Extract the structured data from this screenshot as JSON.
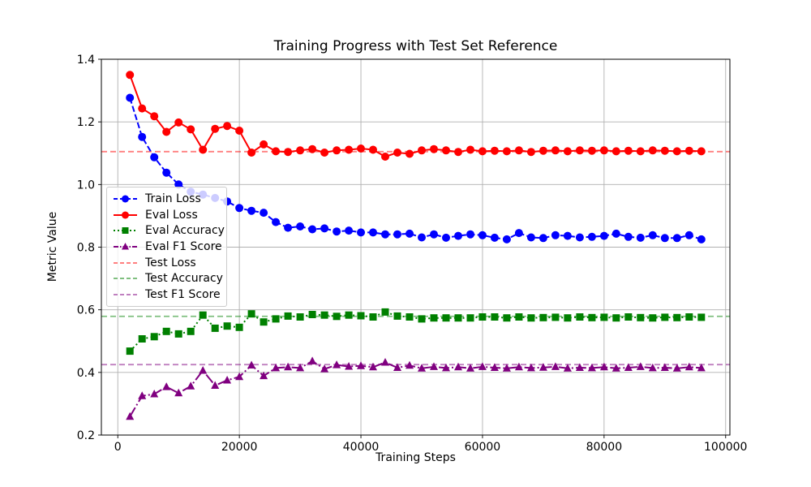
{
  "chart_data": {
    "type": "line",
    "title": "Training Progress with Test Set Reference",
    "xlabel": "Training Steps",
    "ylabel": "Metric Value",
    "xlim": [
      -2700,
      100700
    ],
    "ylim": [
      0.2,
      1.4
    ],
    "x_ticks": [
      0,
      20000,
      40000,
      60000,
      80000,
      100000
    ],
    "x_tick_labels": [
      "0",
      "20000",
      "40000",
      "60000",
      "80000",
      "100000"
    ],
    "y_ticks": [
      0.2,
      0.4,
      0.6,
      0.8,
      1.0,
      1.2,
      1.4
    ],
    "y_tick_labels": [
      "0.2",
      "0.4",
      "0.6",
      "0.8",
      "1.0",
      "1.2",
      "1.4"
    ],
    "grid": true,
    "grid_color": "#b0b0b0",
    "legend_position": "center-left",
    "x": [
      2000,
      4000,
      6000,
      8000,
      10000,
      12000,
      14000,
      16000,
      18000,
      20000,
      22000,
      24000,
      26000,
      28000,
      30000,
      32000,
      34000,
      36000,
      38000,
      40000,
      42000,
      44000,
      46000,
      48000,
      50000,
      52000,
      54000,
      56000,
      58000,
      60000,
      62000,
      64000,
      66000,
      68000,
      70000,
      72000,
      74000,
      76000,
      78000,
      80000,
      82000,
      84000,
      86000,
      88000,
      90000,
      92000,
      94000,
      96000
    ],
    "series": [
      {
        "name": "Train Loss",
        "color": "#0000ff",
        "linestyle": "dashed",
        "marker": "circle",
        "values": [
          1.277,
          1.152,
          1.087,
          1.038,
          1.0,
          0.977,
          0.968,
          0.957,
          0.946,
          0.925,
          0.916,
          0.91,
          0.88,
          0.862,
          0.866,
          0.857,
          0.86,
          0.85,
          0.853,
          0.847,
          0.847,
          0.841,
          0.841,
          0.843,
          0.831,
          0.841,
          0.83,
          0.836,
          0.841,
          0.838,
          0.83,
          0.825,
          0.845,
          0.831,
          0.829,
          0.838,
          0.836,
          0.831,
          0.833,
          0.836,
          0.843,
          0.833,
          0.83,
          0.838,
          0.829,
          0.829,
          0.838,
          0.825
        ]
      },
      {
        "name": "Eval Loss",
        "color": "#ff0000",
        "linestyle": "solid",
        "marker": "circle",
        "values": [
          1.35,
          1.243,
          1.218,
          1.168,
          1.198,
          1.176,
          1.111,
          1.178,
          1.187,
          1.172,
          1.102,
          1.128,
          1.106,
          1.104,
          1.109,
          1.113,
          1.102,
          1.109,
          1.111,
          1.115,
          1.111,
          1.089,
          1.102,
          1.098,
          1.109,
          1.113,
          1.109,
          1.104,
          1.111,
          1.106,
          1.108,
          1.106,
          1.109,
          1.104,
          1.108,
          1.109,
          1.106,
          1.109,
          1.108,
          1.109,
          1.106,
          1.108,
          1.106,
          1.109,
          1.108,
          1.106,
          1.108,
          1.106
        ]
      },
      {
        "name": "Eval Accuracy",
        "color": "#008000",
        "linestyle": "dotted",
        "marker": "square",
        "values": [
          0.468,
          0.507,
          0.514,
          0.531,
          0.523,
          0.531,
          0.583,
          0.541,
          0.548,
          0.544,
          0.587,
          0.561,
          0.571,
          0.58,
          0.577,
          0.585,
          0.583,
          0.579,
          0.583,
          0.581,
          0.577,
          0.593,
          0.58,
          0.577,
          0.571,
          0.574,
          0.574,
          0.574,
          0.574,
          0.577,
          0.577,
          0.574,
          0.577,
          0.574,
          0.575,
          0.576,
          0.574,
          0.577,
          0.575,
          0.576,
          0.574,
          0.577,
          0.575,
          0.574,
          0.576,
          0.575,
          0.577,
          0.576
        ]
      },
      {
        "name": "Eval F1 Score",
        "color": "#800080",
        "linestyle": "dashdot",
        "marker": "triangle",
        "values": [
          0.259,
          0.325,
          0.331,
          0.354,
          0.334,
          0.356,
          0.406,
          0.358,
          0.375,
          0.386,
          0.423,
          0.389,
          0.414,
          0.417,
          0.414,
          0.436,
          0.411,
          0.424,
          0.419,
          0.421,
          0.417,
          0.432,
          0.415,
          0.422,
          0.413,
          0.418,
          0.414,
          0.417,
          0.413,
          0.418,
          0.415,
          0.413,
          0.417,
          0.414,
          0.416,
          0.418,
          0.413,
          0.415,
          0.414,
          0.417,
          0.413,
          0.415,
          0.418,
          0.414,
          0.415,
          0.413,
          0.417,
          0.414
        ]
      }
    ],
    "reference_lines": [
      {
        "name": "Test Loss",
        "color": "#ff0000",
        "opacity": 0.5,
        "linestyle": "dashed",
        "value": 1.105
      },
      {
        "name": "Test Accuracy",
        "color": "#008000",
        "opacity": 0.5,
        "linestyle": "dashed",
        "value": 0.579
      },
      {
        "name": "Test F1 Score",
        "color": "#800080",
        "opacity": 0.5,
        "linestyle": "dashed",
        "value": 0.425
      }
    ]
  }
}
